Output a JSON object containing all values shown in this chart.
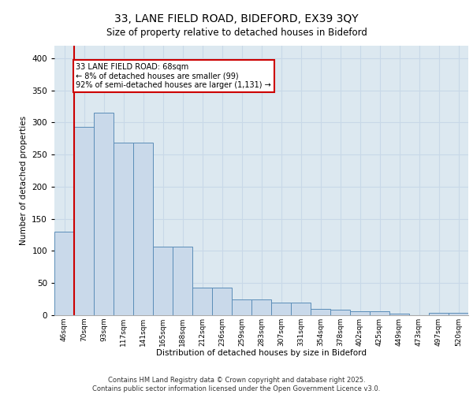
{
  "title_line1": "33, LANE FIELD ROAD, BIDEFORD, EX39 3QY",
  "title_line2": "Size of property relative to detached houses in Bideford",
  "xlabel": "Distribution of detached houses by size in Bideford",
  "ylabel": "Number of detached properties",
  "categories": [
    "46sqm",
    "70sqm",
    "93sqm",
    "117sqm",
    "141sqm",
    "165sqm",
    "188sqm",
    "212sqm",
    "236sqm",
    "259sqm",
    "283sqm",
    "307sqm",
    "331sqm",
    "354sqm",
    "378sqm",
    "402sqm",
    "425sqm",
    "449sqm",
    "473sqm",
    "497sqm",
    "520sqm"
  ],
  "values": [
    130,
    293,
    315,
    268,
    268,
    107,
    107,
    43,
    43,
    25,
    25,
    20,
    20,
    10,
    8,
    6,
    6,
    3,
    0,
    4,
    4
  ],
  "bar_color": "#c9d9ea",
  "bar_edge_color": "#5b8db8",
  "annotation_title": "33 LANE FIELD ROAD: 68sqm",
  "annotation_line2": "← 8% of detached houses are smaller (99)",
  "annotation_line3": "92% of semi-detached houses are larger (1,131) →",
  "annotation_box_color": "#ffffff",
  "annotation_box_edge": "#cc0000",
  "red_line_color": "#cc0000",
  "grid_color": "#c8d8e8",
  "background_color": "#dce8f0",
  "ylim": [
    0,
    420
  ],
  "yticks": [
    0,
    50,
    100,
    150,
    200,
    250,
    300,
    350,
    400
  ],
  "footer_line1": "Contains HM Land Registry data © Crown copyright and database right 2025.",
  "footer_line2": "Contains public sector information licensed under the Open Government Licence v3.0."
}
